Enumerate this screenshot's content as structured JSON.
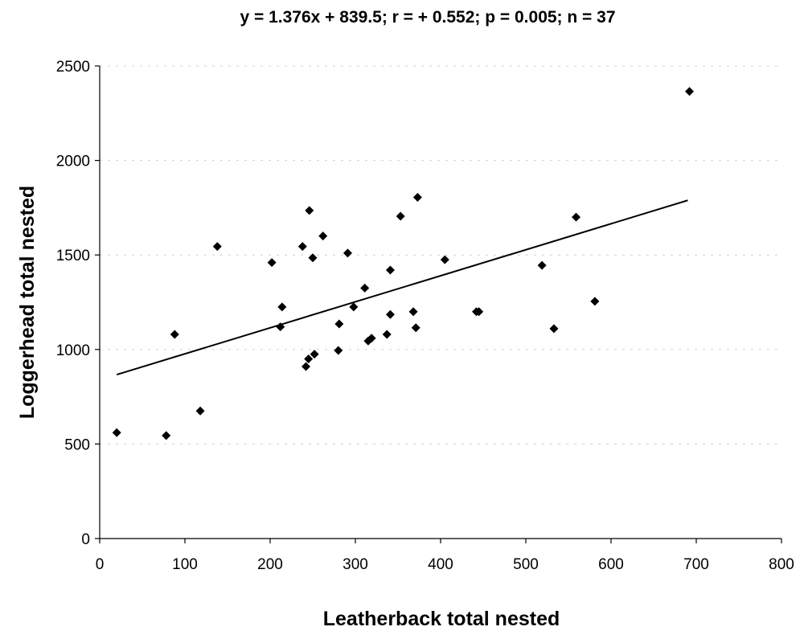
{
  "chart_data": {
    "type": "scatter",
    "title": "y = 1.376x + 839.5; r = + 0.552; p = 0.005; n = 37",
    "xlabel": "Leatherback total nested",
    "ylabel": "Loggerhead total nested",
    "xlim": [
      0,
      800
    ],
    "ylim": [
      0,
      2500
    ],
    "x_ticks": [
      0,
      100,
      200,
      300,
      400,
      500,
      600,
      700,
      800
    ],
    "y_ticks": [
      0,
      500,
      1000,
      1500,
      2000,
      2500
    ],
    "grid": true,
    "legend": "none",
    "marker": "diamond",
    "point_color": "#000000",
    "trendline": {
      "slope": 1.376,
      "intercept": 839.5,
      "x_range": [
        20,
        690
      ]
    },
    "points": [
      {
        "x": 20,
        "y": 560
      },
      {
        "x": 78,
        "y": 545
      },
      {
        "x": 88,
        "y": 1080
      },
      {
        "x": 118,
        "y": 675
      },
      {
        "x": 138,
        "y": 1545
      },
      {
        "x": 202,
        "y": 1460
      },
      {
        "x": 212,
        "y": 1120
      },
      {
        "x": 214,
        "y": 1225
      },
      {
        "x": 238,
        "y": 1545
      },
      {
        "x": 242,
        "y": 910
      },
      {
        "x": 245,
        "y": 950
      },
      {
        "x": 246,
        "y": 1735
      },
      {
        "x": 250,
        "y": 1485
      },
      {
        "x": 252,
        "y": 975
      },
      {
        "x": 262,
        "y": 1600
      },
      {
        "x": 280,
        "y": 995
      },
      {
        "x": 281,
        "y": 1135
      },
      {
        "x": 291,
        "y": 1510
      },
      {
        "x": 298,
        "y": 1225
      },
      {
        "x": 311,
        "y": 1325
      },
      {
        "x": 315,
        "y": 1045
      },
      {
        "x": 319,
        "y": 1060
      },
      {
        "x": 337,
        "y": 1080
      },
      {
        "x": 341,
        "y": 1420
      },
      {
        "x": 341,
        "y": 1185
      },
      {
        "x": 353,
        "y": 1705
      },
      {
        "x": 368,
        "y": 1200
      },
      {
        "x": 371,
        "y": 1115
      },
      {
        "x": 373,
        "y": 1805
      },
      {
        "x": 405,
        "y": 1475
      },
      {
        "x": 442,
        "y": 1200
      },
      {
        "x": 445,
        "y": 1200
      },
      {
        "x": 519,
        "y": 1445
      },
      {
        "x": 533,
        "y": 1110
      },
      {
        "x": 559,
        "y": 1700
      },
      {
        "x": 581,
        "y": 1255
      },
      {
        "x": 692,
        "y": 2365
      }
    ]
  }
}
